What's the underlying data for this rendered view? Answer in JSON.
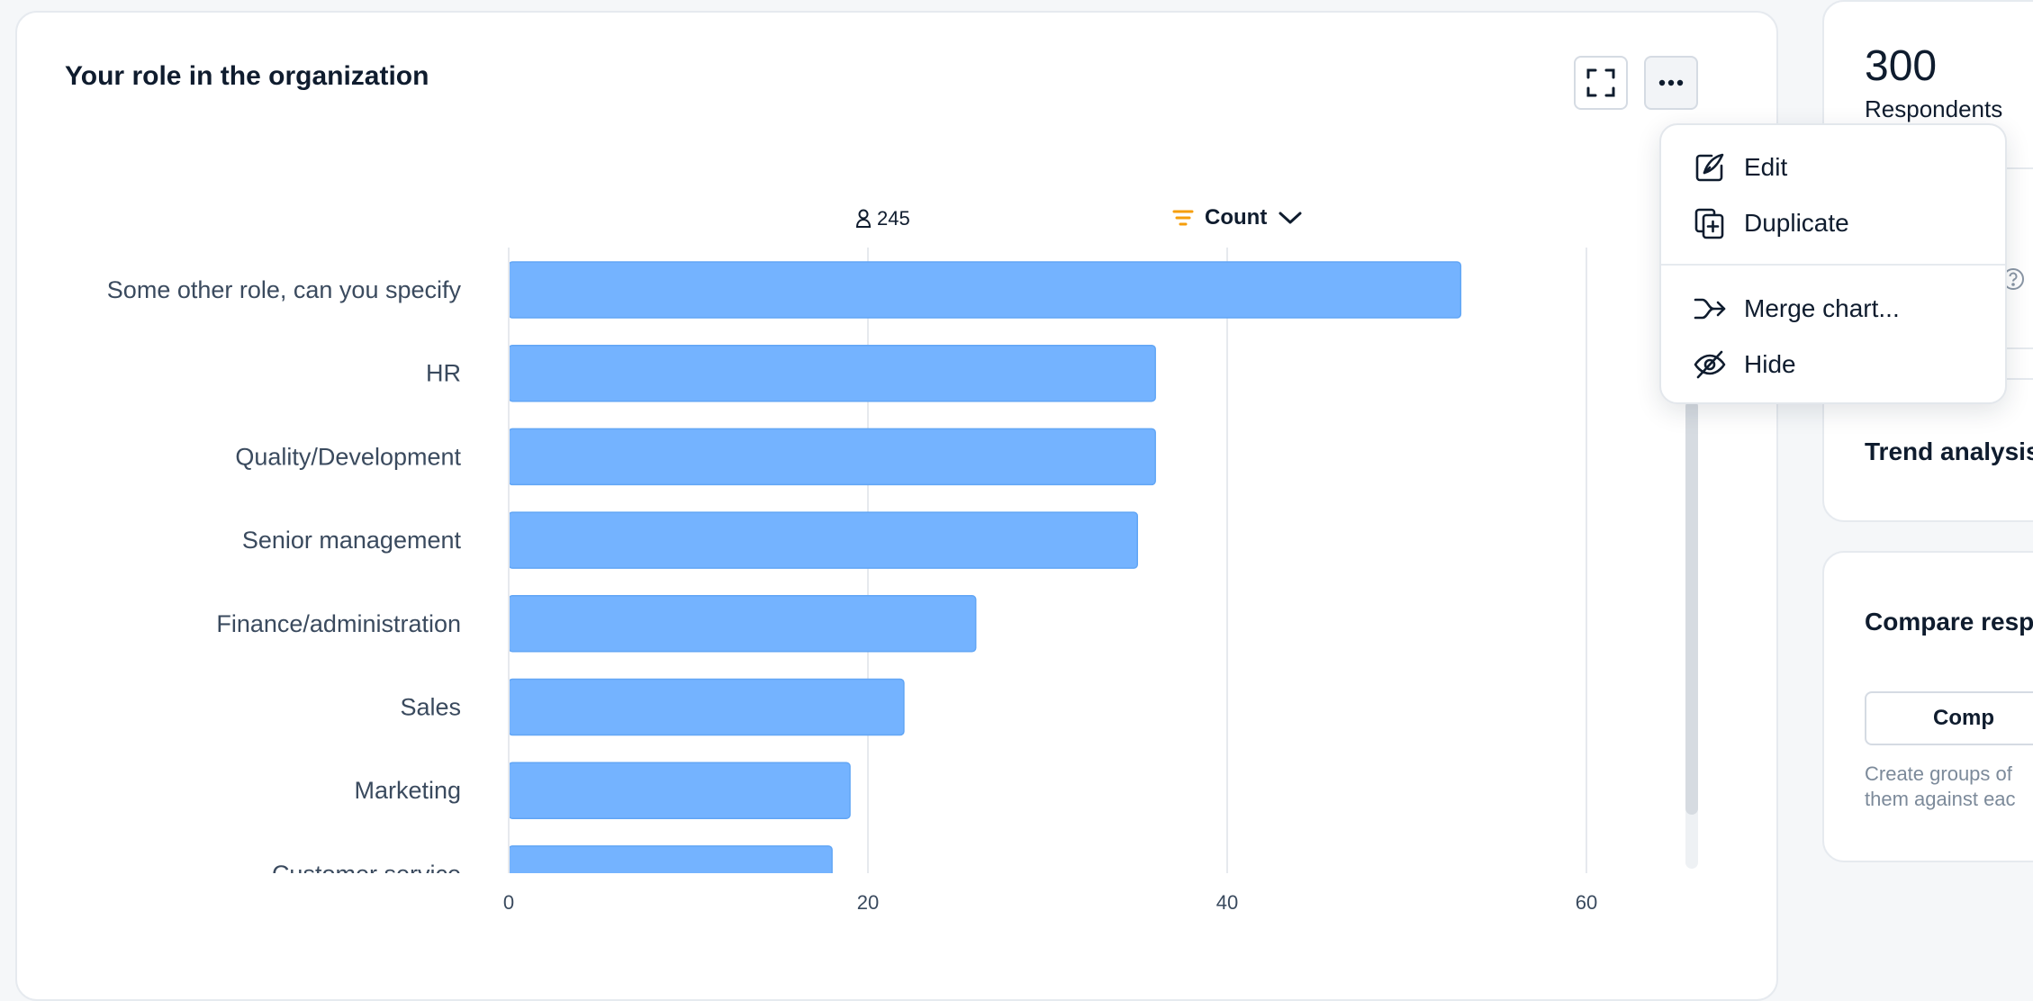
{
  "chart_card": {
    "title": "Your role in the organization",
    "respondents": "245",
    "sort_label": "Count"
  },
  "context_menu": {
    "items": [
      {
        "label": "Edit",
        "icon": "pen-icon"
      },
      {
        "label": "Duplicate",
        "icon": "duplicate-icon"
      },
      {
        "label": "Merge chart...",
        "icon": "merge-arrow-icon"
      },
      {
        "label": "Hide",
        "icon": "eye-off-icon"
      }
    ]
  },
  "right_panel": {
    "stat_value": "300",
    "stat_label": "Respondents",
    "trend_title": "Trend analysis",
    "compare_title": "Compare respo",
    "compare_button": "Comp",
    "compare_desc_line1": "Create groups of",
    "compare_desc_line2": "them against eac"
  },
  "colors": {
    "bar": "#74b3ff",
    "accent_filter": "#f59e0b"
  },
  "chart_data": {
    "type": "bar",
    "orientation": "horizontal",
    "categories": [
      "Some other role, can you specify",
      "HR",
      "Quality/Development",
      "Senior management",
      "Finance/administration",
      "Sales",
      "Marketing",
      "Customer service"
    ],
    "values": [
      53,
      36,
      36,
      35,
      26,
      22,
      19,
      18
    ],
    "xlim": [
      0,
      60
    ],
    "xticks": [
      "0",
      "20",
      "40",
      "60"
    ],
    "grid": true
  }
}
